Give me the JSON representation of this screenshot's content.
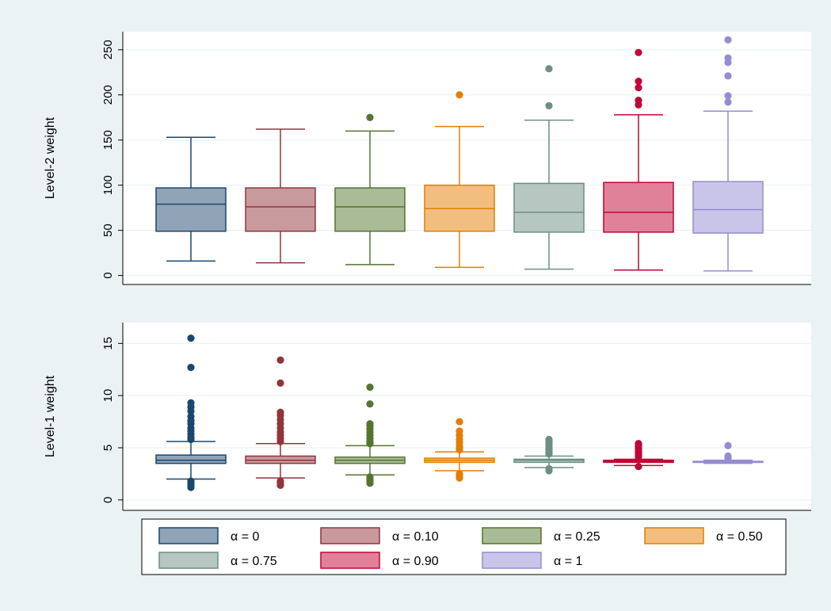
{
  "chart_data": [
    {
      "type": "box",
      "title": "",
      "xlabel": "",
      "ylabel": "Level-2 weight",
      "ylim": [
        -10,
        270
      ],
      "yticks": [
        0,
        50,
        100,
        150,
        200,
        250
      ],
      "ytick_labels": [
        "0",
        "50",
        "100",
        "150",
        "200",
        "250"
      ],
      "grid": true,
      "series": [
        {
          "name": "α = 0",
          "color": "#1a476f",
          "fill": "#90a3b7",
          "whisker_low": 16,
          "q1": 49,
          "median": 79,
          "q3": 97,
          "whisker_high": 153,
          "outliers": []
        },
        {
          "name": "α = 0.10",
          "color": "#90353b",
          "fill": "#c89a9d",
          "whisker_low": 14,
          "q1": 49,
          "median": 76,
          "q3": 97,
          "whisker_high": 162,
          "outliers": []
        },
        {
          "name": "α = 0.25",
          "color": "#55752f",
          "fill": "#aabb97",
          "whisker_low": 12,
          "q1": 49,
          "median": 76,
          "q3": 97,
          "whisker_high": 160,
          "outliers": [
            175
          ]
        },
        {
          "name": "α = 0.50",
          "color": "#e37e00",
          "fill": "#f1be7f",
          "whisker_low": 9,
          "q1": 49,
          "median": 74,
          "q3": 100,
          "whisker_high": 165,
          "outliers": [
            200
          ]
        },
        {
          "name": "α = 0.75",
          "color": "#6e8e84",
          "fill": "#b6c6c1",
          "whisker_low": 7,
          "q1": 48,
          "median": 70,
          "q3": 102,
          "whisker_high": 172,
          "outliers": [
            188,
            229
          ]
        },
        {
          "name": "α = 0.90",
          "color": "#c10534",
          "fill": "#e08199",
          "whisker_low": 6,
          "q1": 48,
          "median": 70,
          "q3": 103,
          "whisker_high": 178,
          "outliers": [
            189,
            194,
            208,
            215,
            247
          ]
        },
        {
          "name": "α = 1",
          "color": "#938dd2",
          "fill": "#c9c5e8",
          "whisker_low": 5,
          "q1": 47,
          "median": 73,
          "q3": 104,
          "whisker_high": 182,
          "outliers": [
            192,
            199,
            221,
            236,
            241,
            261
          ]
        }
      ]
    },
    {
      "type": "box",
      "title": "",
      "xlabel": "",
      "ylabel": "Level-1 weight",
      "ylim": [
        -1,
        17
      ],
      "yticks": [
        0,
        5,
        10,
        15
      ],
      "ytick_labels": [
        "0",
        "5",
        "10",
        "15"
      ],
      "grid": true,
      "series": [
        {
          "name": "α = 0",
          "whisker_low": 2.0,
          "q1": 3.5,
          "median": 3.8,
          "q3": 4.3,
          "whisker_high": 5.6,
          "outliers": [
            1.2,
            1.4,
            1.6,
            1.8,
            5.8,
            6.0,
            6.3,
            6.6,
            6.9,
            7.3,
            7.6,
            8.0,
            8.5,
            8.9,
            9.3,
            12.7,
            15.5
          ]
        },
        {
          "name": "α = 0.10",
          "whisker_low": 2.1,
          "q1": 3.5,
          "median": 3.8,
          "q3": 4.2,
          "whisker_high": 5.4,
          "outliers": [
            1.4,
            1.6,
            1.8,
            5.6,
            5.9,
            6.2,
            6.5,
            6.9,
            7.3,
            7.7,
            8.1,
            8.4,
            11.2,
            13.4
          ]
        },
        {
          "name": "α = 0.25",
          "whisker_low": 2.4,
          "q1": 3.5,
          "median": 3.8,
          "q3": 4.1,
          "whisker_high": 5.2,
          "outliers": [
            1.6,
            1.8,
            2.0,
            2.2,
            5.4,
            5.6,
            5.9,
            6.2,
            6.5,
            6.8,
            7.1,
            7.3,
            9.2,
            10.8
          ]
        },
        {
          "name": "α = 0.50",
          "whisker_low": 2.8,
          "q1": 3.6,
          "median": 3.8,
          "q3": 4.0,
          "whisker_high": 4.6,
          "outliers": [
            2.1,
            2.3,
            2.5,
            4.8,
            5.0,
            5.2,
            5.5,
            5.8,
            6.2,
            6.6,
            7.5
          ]
        },
        {
          "name": "α = 0.75",
          "whisker_low": 3.1,
          "q1": 3.6,
          "median": 3.8,
          "q3": 3.9,
          "whisker_high": 4.2,
          "outliers": [
            2.8,
            3.0,
            4.4,
            4.6,
            4.8,
            5.0,
            5.2,
            5.4,
            5.6,
            5.8
          ]
        },
        {
          "name": "α = 0.90",
          "whisker_low": 3.3,
          "q1": 3.6,
          "median": 3.7,
          "q3": 3.8,
          "whisker_high": 3.9,
          "outliers": [
            3.2,
            4.1,
            4.3,
            4.5,
            4.7,
            4.9,
            5.1,
            5.3,
            5.4
          ]
        },
        {
          "name": "α = 1",
          "whisker_low": 3.5,
          "q1": 3.6,
          "median": 3.6,
          "q3": 3.7,
          "whisker_high": 3.8,
          "outliers": [
            4.0,
            4.2,
            5.2
          ]
        }
      ]
    }
  ],
  "legend": {
    "placement": "bottom",
    "entries": [
      "α = 0",
      "α = 0.10",
      "α = 0.25",
      "α = 0.50",
      "α = 0.75",
      "α = 0.90",
      "α = 1"
    ]
  }
}
